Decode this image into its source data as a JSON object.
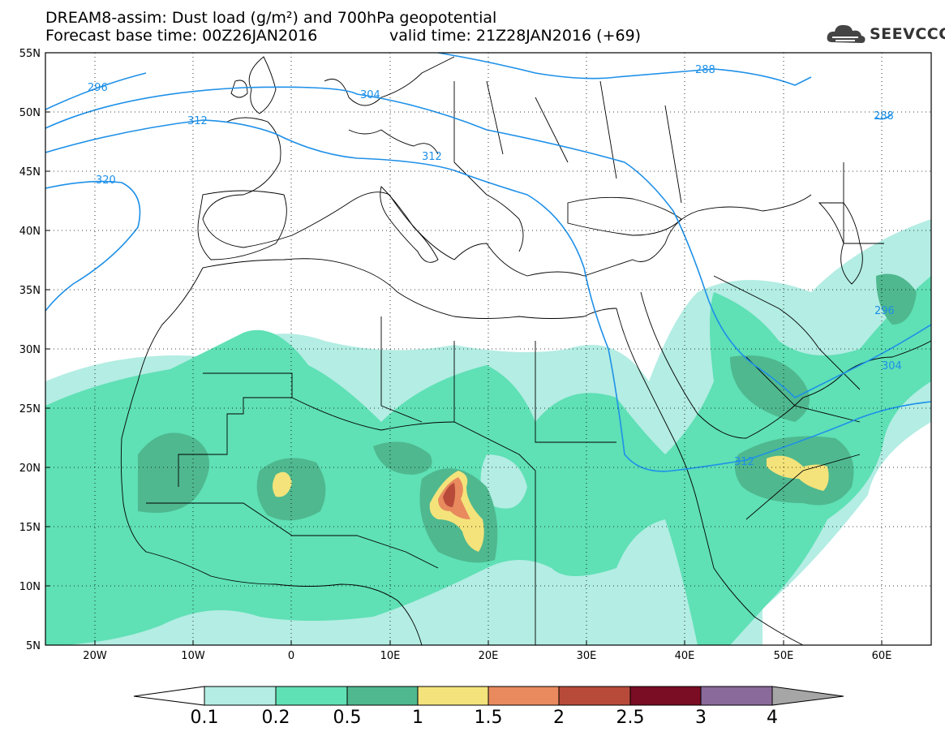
{
  "title": {
    "line1": "DREAM8-assim: Dust load (g/m²) and 700hPa geopotential",
    "line2_left": "Forecast base time: 00Z26JAN2016",
    "line2_right": "valid time: 21Z28JAN2016 (+69)"
  },
  "logo": {
    "text": "SEEVCCC",
    "icon": "cloud-logo-icon"
  },
  "map": {
    "lat_labels": [
      "55N",
      "50N",
      "45N",
      "40N",
      "35N",
      "30N",
      "25N",
      "20N",
      "15N",
      "10N",
      "5N"
    ],
    "lon_labels": [
      "20W",
      "10W",
      "0",
      "10E",
      "20E",
      "30E",
      "40E",
      "50E",
      "60E"
    ],
    "contour_labels": [
      "296",
      "304",
      "312",
      "320",
      "288",
      "288",
      "312",
      "296",
      "304",
      "312"
    ],
    "contour_color": "#1e90e8"
  },
  "colorbar": {
    "labels": [
      "0.1",
      "0.2",
      "0.5",
      "1",
      "1.5",
      "2",
      "2.5",
      "3",
      "4"
    ],
    "colors": [
      "#ffffff",
      "#b3ede3",
      "#5fe0b5",
      "#4fb88f",
      "#f4e37a",
      "#e88a5e",
      "#b84a3a",
      "#7a0c24",
      "#8a6a9a",
      "#a6a6a6"
    ]
  }
}
